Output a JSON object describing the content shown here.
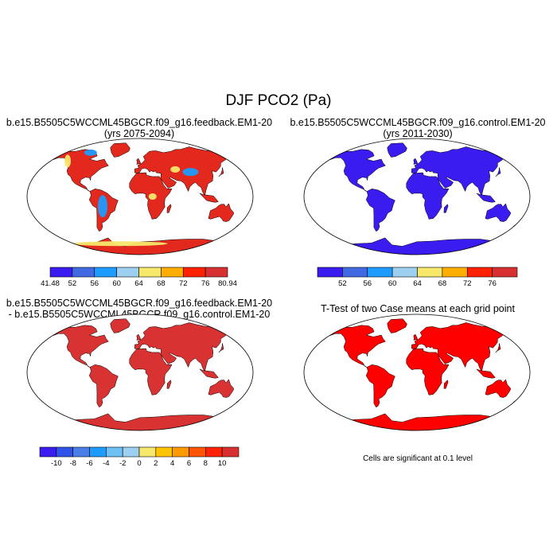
{
  "figure": {
    "title": "DJF PCO2 (Pa)"
  },
  "panels": [
    {
      "id": "feedback",
      "title_line1": "b.e15.B5505C5WCCML45BGCR.f09_g16.feedback.EM1-20",
      "title_line2": "(yrs 2075-2094)",
      "colorbar": {
        "labels": [
          "41.48",
          "52",
          "56",
          "60",
          "64",
          "68",
          "72",
          "76",
          "80.94"
        ],
        "colors": [
          "#3a1cf0",
          "#4169e1",
          "#1e9bff",
          "#9dd0f0",
          "#f7e76b",
          "#ffae00",
          "#ff2200",
          "#d83030"
        ]
      }
    },
    {
      "id": "control",
      "title_line1": "b.e15.B5505C5WCCML45BGCR.f09_g16.control.EM1-20",
      "title_line2": "(yrs 2011-2030)",
      "colorbar": {
        "labels": [
          "52",
          "56",
          "60",
          "64",
          "68",
          "72",
          "76"
        ],
        "colors": [
          "#3a1cf0",
          "#4169e1",
          "#1e9bff",
          "#9dd0f0",
          "#f7e76b",
          "#ffae00",
          "#ff2200",
          "#d83030"
        ]
      }
    },
    {
      "id": "difference",
      "title_line1": "b.e15.B5505C5WCCML45BGCR.f09_g16.feedback.EM1-20",
      "title_line2": "- b.e15.B5505C5WCCML45BGCR.f09_g16.control.EM1-20",
      "colorbar": {
        "labels": [
          "-10",
          "-8",
          "-6",
          "-4",
          "-2",
          "0",
          "2",
          "4",
          "6",
          "8",
          "10"
        ],
        "colors": [
          "#3a1cf0",
          "#2f52e8",
          "#4a7de6",
          "#1e9bff",
          "#6ec0f5",
          "#9dd0f0",
          "#f7e76b",
          "#ffc400",
          "#ff9a00",
          "#ff5500",
          "#ff2200",
          "#d83030"
        ]
      }
    },
    {
      "id": "ttest",
      "title": "T-Test of two Case means at each grid point",
      "note": "Cells are significant at 0.1 level"
    }
  ],
  "colors": {
    "land_feedback": "#e3281e",
    "land_control": "#3a1cf0",
    "land_difference": "#d83232",
    "land_ttest": "#ff0000",
    "high_anomaly": "#f7e76b",
    "low_anomaly": "#1e9bff"
  }
}
